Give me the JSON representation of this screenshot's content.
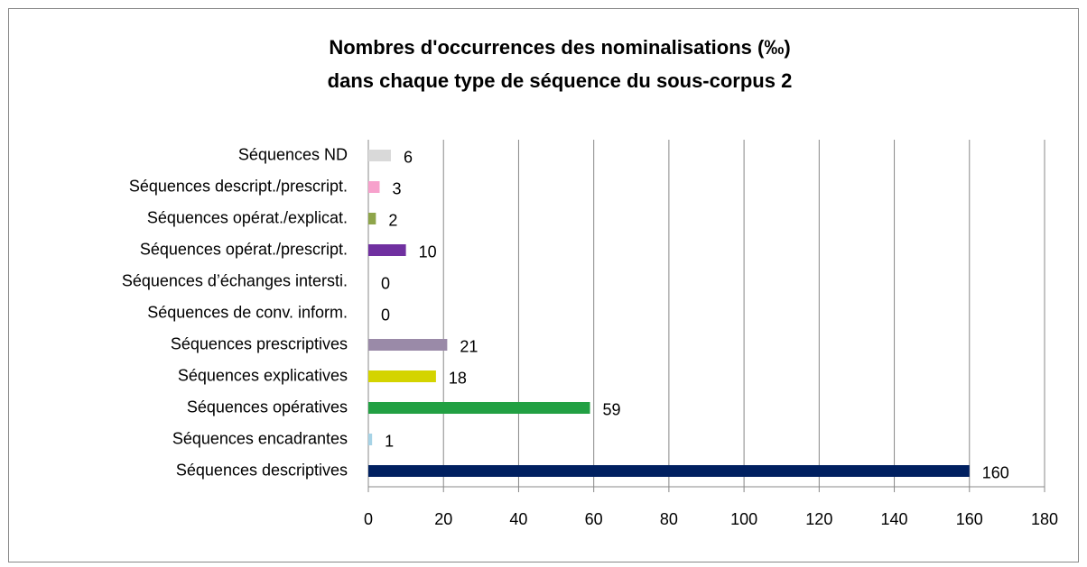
{
  "chart_data": {
    "type": "bar",
    "orientation": "horizontal",
    "title": [
      "Nombres d'occurrences des nominalisations  (‰)",
      "dans chaque type de séquence du sous-corpus 2"
    ],
    "categories": [
      "Séquences ND",
      "Séquences descript./prescript.",
      "Séquences opérat./explicat.",
      "Séquences opérat./prescript.",
      "Séquences d’échanges intersti.",
      "Séquences de conv. inform.",
      "Séquences prescriptives",
      "Séquences explicatives",
      "Séquences opératives",
      "Séquences encadrantes",
      "Séquences descriptives"
    ],
    "values": [
      6,
      3,
      2,
      10,
      0,
      0,
      21,
      18,
      59,
      1,
      160
    ],
    "colors": [
      "#d9d9d9",
      "#f7a1cc",
      "#8ea54a",
      "#7030a0",
      "#a0a0a0",
      "#a0a0a0",
      "#9a8aa8",
      "#d4d400",
      "#22a043",
      "#a7d3e6",
      "#002060"
    ],
    "xlim": [
      0,
      180
    ],
    "xticks": [
      0,
      20,
      40,
      60,
      80,
      100,
      120,
      140,
      160,
      180
    ],
    "grid": true
  }
}
